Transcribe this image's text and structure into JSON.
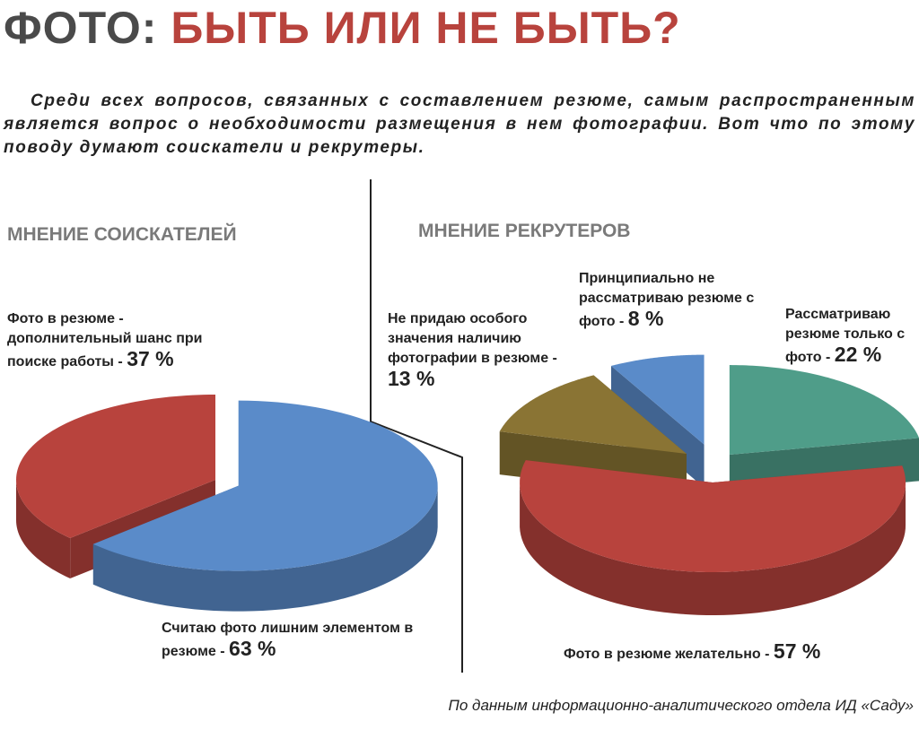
{
  "title": {
    "lead": "ФОТО:",
    "main": "БЫТЬ ИЛИ НЕ БЫТЬ?"
  },
  "intro": "Среди всех вопросов, связанных с составлением резюме, самым распространенным является вопрос о необходимости размещения в нем фотографии. Вот что по этому поводу думают соискатели и рекрутеры.",
  "source": "По данным информационно-аналитического отдела ИД «Саду»",
  "chart_data": [
    {
      "type": "pie",
      "title": "МНЕНИЕ СОИСКАТЕЛЕЙ",
      "categories": [
        "Фото в резюме - дополнительный шанс при поиске работы -",
        "Считаю фото лишним элементом в резюме -"
      ],
      "values": [
        37,
        63
      ],
      "value_labels": [
        "37 %",
        "63 %"
      ],
      "colors": [
        "#b8433d",
        "#5a8bc9"
      ]
    },
    {
      "type": "pie",
      "title": "МНЕНИЕ РЕКРУТЕРОВ",
      "categories": [
        "Рассматриваю резюме только с фото -",
        "Фото в резюме желательно -",
        "Не придаю особого значения наличию фотографии в резюме -",
        "Принципиально не рассматриваю резюме с фото -"
      ],
      "values": [
        22,
        57,
        13,
        8
      ],
      "value_labels": [
        "22 %",
        "57 %",
        "13 %",
        "8 %"
      ],
      "colors": [
        "#4f9d89",
        "#b8433d",
        "#8a7434",
        "#5a8bc9"
      ]
    }
  ]
}
